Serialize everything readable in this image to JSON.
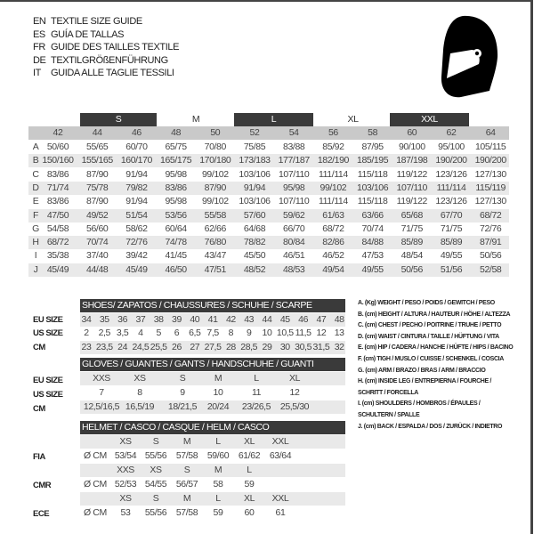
{
  "header": {
    "titles": [
      {
        "code": "EN",
        "text": "TEXTILE SIZE GUIDE"
      },
      {
        "code": "ES",
        "text": "GUÍA DE TALLAS"
      },
      {
        "code": "FR",
        "text": "GUIDE DES TAILLES TEXTILE"
      },
      {
        "code": "DE",
        "text": "TEXTILGRÖßENFÜHRUNG"
      },
      {
        "code": "IT",
        "text": "GUIDA ALLE TAGLIE TESSILI"
      }
    ],
    "logo_icon": "helmet-icon"
  },
  "textile": {
    "size_bands": [
      "S",
      "M",
      "L",
      "XL",
      "XXL"
    ],
    "sizes": [
      "42",
      "44",
      "46",
      "48",
      "50",
      "52",
      "54",
      "56",
      "58",
      "60",
      "62",
      "64"
    ],
    "rows": [
      {
        "letter": "A",
        "values": [
          "50/60",
          "55/65",
          "60/70",
          "65/75",
          "70/80",
          "75/85",
          "83/88",
          "85/92",
          "87/95",
          "90/100",
          "95/100",
          "105/115"
        ]
      },
      {
        "letter": "B",
        "values": [
          "150/160",
          "155/165",
          "160/170",
          "165/175",
          "170/180",
          "173/183",
          "177/187",
          "182/190",
          "185/195",
          "187/198",
          "190/200",
          "190/200"
        ]
      },
      {
        "letter": "C",
        "values": [
          "83/86",
          "87/90",
          "91/94",
          "95/98",
          "99/102",
          "103/106",
          "107/110",
          "111/114",
          "115/118",
          "119/122",
          "123/126",
          "127/130"
        ]
      },
      {
        "letter": "D",
        "values": [
          "71/74",
          "75/78",
          "79/82",
          "83/86",
          "87/90",
          "91/94",
          "95/98",
          "99/102",
          "103/106",
          "107/110",
          "111/114",
          "115/119"
        ]
      },
      {
        "letter": "E",
        "values": [
          "83/86",
          "87/90",
          "91/94",
          "95/98",
          "99/102",
          "103/106",
          "107/110",
          "111/114",
          "115/118",
          "119/122",
          "123/126",
          "127/130"
        ]
      },
      {
        "letter": "F",
        "values": [
          "47/50",
          "49/52",
          "51/54",
          "53/56",
          "55/58",
          "57/60",
          "59/62",
          "61/63",
          "63/66",
          "65/68",
          "67/70",
          "68/72"
        ]
      },
      {
        "letter": "G",
        "values": [
          "54/58",
          "56/60",
          "58/62",
          "60/64",
          "62/66",
          "64/68",
          "66/70",
          "68/72",
          "70/74",
          "71/75",
          "71/75",
          "72/76"
        ]
      },
      {
        "letter": "H",
        "values": [
          "68/72",
          "70/74",
          "72/76",
          "74/78",
          "76/80",
          "78/82",
          "80/84",
          "82/86",
          "84/88",
          "85/89",
          "85/89",
          "87/91"
        ]
      },
      {
        "letter": "I",
        "values": [
          "35/38",
          "37/40",
          "39/42",
          "41/45",
          "43/47",
          "45/50",
          "46/51",
          "46/52",
          "47/53",
          "48/54",
          "49/55",
          "50/56"
        ]
      },
      {
        "letter": "J",
        "values": [
          "45/49",
          "44/48",
          "45/49",
          "46/50",
          "47/51",
          "48/52",
          "48/53",
          "49/54",
          "49/55",
          "50/56",
          "51/56",
          "52/58"
        ]
      }
    ]
  },
  "shoes": {
    "title": "SHOES/ ZAPATOS / CHAUSSURES / SCHUHE / SCARPE",
    "rows": [
      {
        "label": "EU SIZE",
        "values": [
          "34",
          "35",
          "36",
          "37",
          "38",
          "39",
          "40",
          "41",
          "42",
          "43",
          "44",
          "45",
          "46",
          "47",
          "48"
        ]
      },
      {
        "label": "US SIZE",
        "values": [
          "2",
          "2,5",
          "3,5",
          "4",
          "5",
          "6",
          "6,5",
          "7,5",
          "8",
          "9",
          "10",
          "10,5",
          "11,5",
          "12",
          "13"
        ]
      },
      {
        "label": "CM",
        "values": [
          "23",
          "23,5",
          "24",
          "24,5",
          "25,5",
          "26",
          "27",
          "27,5",
          "28",
          "28,5",
          "29",
          "30",
          "30,5",
          "31,5",
          "32"
        ]
      }
    ]
  },
  "gloves": {
    "title": "GLOVES / GUANTES / GANTS / HANDSCHUHE / GUANTI",
    "rows": [
      {
        "label": "EU SIZE",
        "values": [
          "XXS",
          "XS",
          "S",
          "M",
          "L",
          "XL"
        ]
      },
      {
        "label": "US SIZE",
        "values": [
          "7",
          "8",
          "9",
          "10",
          "11",
          "12"
        ]
      },
      {
        "label": "CM",
        "values": [
          "12,5/16,5",
          "16,5/19",
          "18/21,5",
          "20/24",
          "23/26,5",
          "25,5/30"
        ]
      }
    ]
  },
  "helmet": {
    "title": "HELMET / CASCO / CASQUE / HELM / CASCO",
    "unit": "Ø CM",
    "groups": [
      {
        "label": "FIA",
        "sizes": [
          "XS",
          "S",
          "M",
          "L",
          "XL",
          "XXL"
        ],
        "values": [
          "53/54",
          "55/56",
          "57/58",
          "59/60",
          "61/62",
          "63/64"
        ]
      },
      {
        "label": "CMR",
        "sizes": [
          "XXS",
          "XS",
          "S",
          "M",
          "L"
        ],
        "values": [
          "52/53",
          "54/55",
          "56/57",
          "58",
          "59"
        ]
      },
      {
        "label": "ECE",
        "sizes": [
          "XS",
          "S",
          "M",
          "L",
          "XL",
          "XXL"
        ],
        "values": [
          "53",
          "55/56",
          "57/58",
          "59",
          "60",
          "61"
        ]
      }
    ]
  },
  "legend": [
    "A. (Kg) WEIGHT / PESO / POIDS / GEWITCH / PESO",
    "B. (cm) HEIGHT / ALTURA / HAUTEUR / HÖHE / ALTEZZA",
    "C. (cm) CHEST / PECHO / POITRINE / TRUHE / PETTO",
    "D. (cm) WAIST / CINTURA / TAILLE / HÜFTUNG / VITA",
    "E. (cm) HIP / CADERA / HANCHE / HÜFTE / HIPS / BACINO",
    "F. (cm) TIGH / MUSLO / CUISSE / SCHENKEL / COSCIA",
    "G. (cm) ARM / BRAZO / BRAS / ARM / BRACCIO",
    "H. (cm) INSIDE LEG / ENTREPIERNA / FOURCHE /",
    "SCHRITT / FORCELLA",
    "I. (cm) SHOULDERS / HOMBROS / ÉPAULES /",
    "SCHULTERN / SPALLE",
    "J. (cm) BACK / ESPALDA / DOS / ZURÜCK / INDIETRO"
  ]
}
